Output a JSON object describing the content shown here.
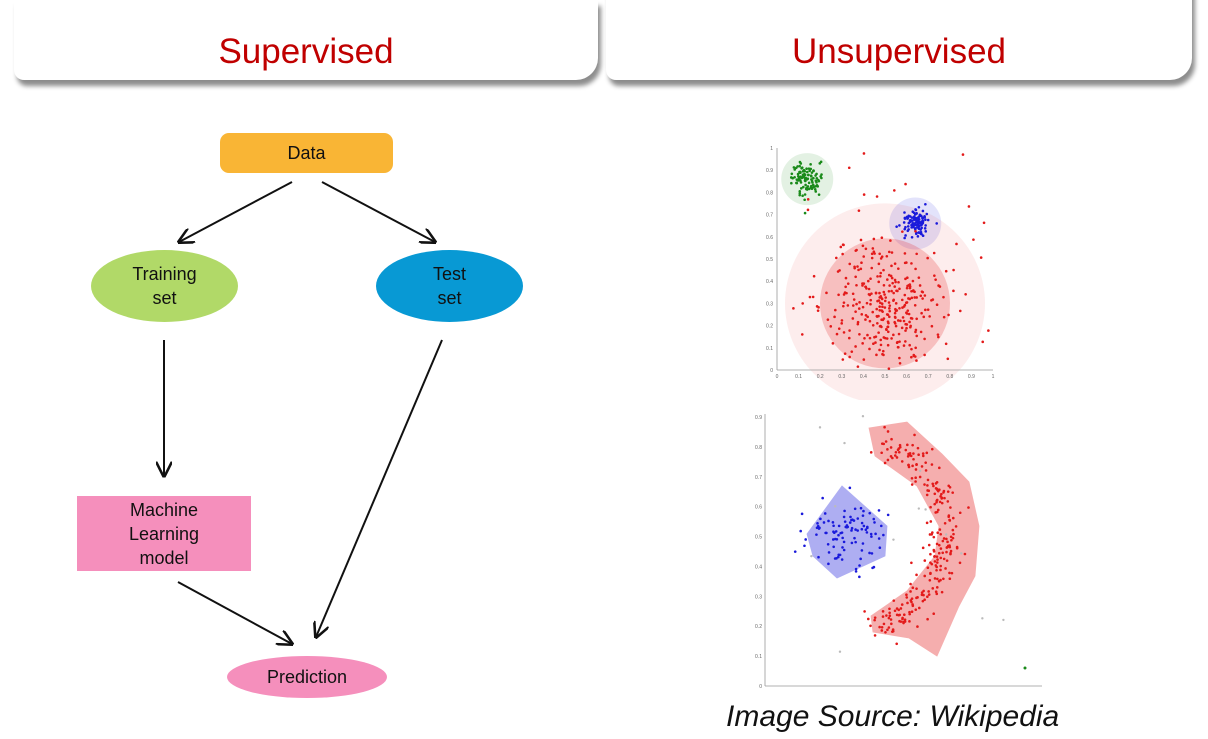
{
  "headers": {
    "supervised": "Supervised",
    "unsupervised": "Unsupervised"
  },
  "flowchart": {
    "nodes": {
      "data": "Data",
      "training_set": "Training\nset",
      "test_set": "Test\nset",
      "ml_model": "Machine\nLearning\nmodel",
      "prediction": "Prediction"
    },
    "colors": {
      "data": "#f9b535",
      "training_set": "#b1d968",
      "test_set": "#0899d4",
      "ml_model": "#f58fbc",
      "prediction": "#f58fbc"
    }
  },
  "plots": {
    "top": {
      "type": "scatter",
      "x_ticks": [
        "0",
        "0.1",
        "0.2",
        "0.3",
        "0.4",
        "0.5",
        "0.6",
        "0.7",
        "0.8",
        "0.9",
        "1"
      ],
      "y_ticks": [
        "0",
        "0.1",
        "0.2",
        "0.3",
        "0.4",
        "0.5",
        "0.6",
        "0.7",
        "0.8",
        "0.9",
        "1"
      ],
      "clusters": [
        {
          "color": "#1a8a1a",
          "center": [
            0.14,
            0.86
          ],
          "spread": 0.035,
          "count": 110
        },
        {
          "color": "#1a1adb",
          "center": [
            0.64,
            0.66
          ],
          "spread": 0.03,
          "count": 110
        },
        {
          "color": "#e31a1a",
          "center": [
            0.5,
            0.3
          ],
          "spread": 0.13,
          "count": 320
        }
      ]
    },
    "bottom": {
      "type": "scatter",
      "y_ticks": [
        "0",
        "0.1",
        "0.2",
        "0.3",
        "0.4",
        "0.5",
        "0.6",
        "0.7",
        "0.8",
        "0.9"
      ],
      "clusters": [
        {
          "color": "#1a1adb",
          "shape": "blob"
        },
        {
          "color": "#e31a1a",
          "shape": "crescent"
        }
      ]
    }
  },
  "caption": "Image Source: Wikipedia"
}
